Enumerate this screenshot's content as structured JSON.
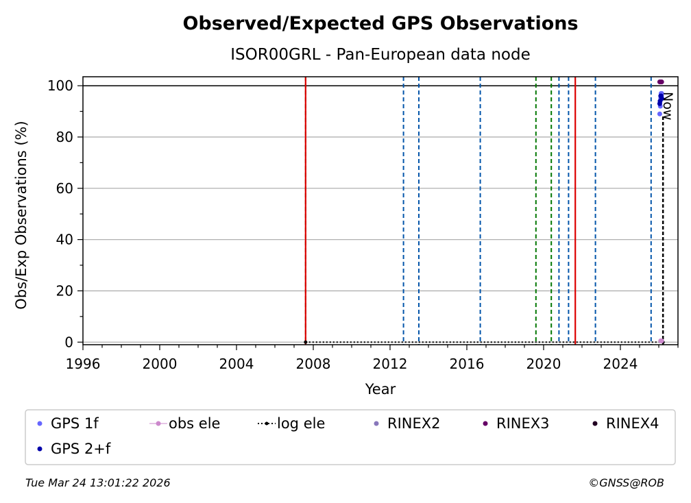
{
  "chart_data": {
    "type": "scatter",
    "title": "Observed/Expected GPS Observations",
    "subtitle": "ISOR00GRL - Pan-European data node",
    "xlabel": "Year",
    "ylabel": "Obs/Exp Observations (%)",
    "xlim": [
      1996,
      2027.0
    ],
    "ylim": [
      -1,
      103.5
    ],
    "x_ticks": [
      1996,
      2000,
      2004,
      2008,
      2012,
      2016,
      2020,
      2024
    ],
    "x_tick_labels": [
      "1996",
      "2000",
      "2004",
      "2008",
      "2012",
      "2016",
      "2020",
      "2024"
    ],
    "y_ticks": [
      0,
      20,
      40,
      60,
      80,
      100
    ],
    "y_tick_labels": [
      "0",
      "20",
      "40",
      "60",
      "80",
      "100"
    ],
    "grid": "y-major",
    "reference_line_y": 100,
    "vertical_markers": [
      {
        "x": 2007.6,
        "kind": "green-dashed"
      },
      {
        "x": 2007.6,
        "kind": "red-solid"
      },
      {
        "x": 2012.7,
        "kind": "blue-dashed"
      },
      {
        "x": 2013.5,
        "kind": "blue-dashed"
      },
      {
        "x": 2016.7,
        "kind": "blue-dashed"
      },
      {
        "x": 2019.6,
        "kind": "green-dashed"
      },
      {
        "x": 2020.4,
        "kind": "green-dashed"
      },
      {
        "x": 2020.8,
        "kind": "blue-dashed"
      },
      {
        "x": 2021.3,
        "kind": "blue-dashed"
      },
      {
        "x": 2021.65,
        "kind": "red-solid"
      },
      {
        "x": 2022.7,
        "kind": "blue-dashed"
      },
      {
        "x": 2025.6,
        "kind": "blue-dashed"
      }
    ],
    "now": {
      "x": 2026.22,
      "label": "Now"
    },
    "log_ele": {
      "name": "log ele",
      "x_start": 2007.6,
      "x_end": 2026.22,
      "y": 0
    },
    "series": [
      {
        "name": "GPS 1f",
        "color": "#6666ff",
        "x": [
          2026.05,
          2026.08,
          2026.1,
          2026.12,
          2026.15
        ],
        "y": [
          89,
          92,
          95,
          97,
          97
        ]
      },
      {
        "name": "GPS 2+f",
        "color": "#0000aa",
        "x": [
          2026.05,
          2026.07,
          2026.1,
          2026.13,
          2026.16
        ],
        "y": [
          93,
          94,
          96,
          96,
          95
        ]
      },
      {
        "name": "obs ele",
        "color": "#cc88cc",
        "x": [
          2026.1,
          2026.15
        ],
        "y": [
          0.5,
          0.5
        ]
      },
      {
        "name": "RINEX2",
        "color": "#8877bb",
        "x": [],
        "y": []
      },
      {
        "name": "RINEX3",
        "color": "#660066",
        "x": [
          2026.05,
          2026.1,
          2026.15
        ],
        "y": [
          101.5,
          101.5,
          101.5
        ]
      },
      {
        "name": "RINEX4",
        "color": "#220022",
        "x": [],
        "y": []
      }
    ]
  },
  "legend": {
    "items": [
      {
        "label": "GPS 1f",
        "symbol": "dot",
        "color": "#6666ff"
      },
      {
        "label": "obs ele",
        "symbol": "line-dot",
        "color": "#cc88cc"
      },
      {
        "label": "log ele",
        "symbol": "dotted-line",
        "color": "#000000"
      },
      {
        "label": "RINEX2",
        "symbol": "dot",
        "color": "#8877bb"
      },
      {
        "label": "RINEX3",
        "symbol": "dot",
        "color": "#660066"
      },
      {
        "label": "RINEX4",
        "symbol": "dot",
        "color": "#220022"
      },
      {
        "label": "GPS 2+f",
        "symbol": "dot",
        "color": "#0000aa"
      }
    ]
  },
  "footer": {
    "timestamp": "Tue Mar 24 13:01:22 2026",
    "credit": "©GNSS@ROB"
  },
  "colors": {
    "green_marker": "#007700",
    "red_marker": "#dd0000",
    "blue_marker": "#0055aa",
    "grid": "#b0b0b0"
  }
}
